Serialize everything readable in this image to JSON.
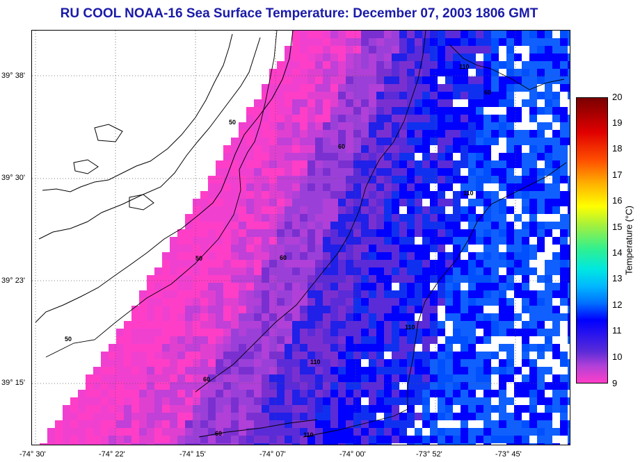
{
  "title": "RU COOL  NOAA-16  Sea Surface Temperature:  December 07, 2003 1806 GMT",
  "map": {
    "y_ticks": [
      "39° 38'",
      "39° 30'",
      "39° 23'",
      "39° 15'"
    ],
    "x_ticks": [
      "-74° 30'",
      "-74° 22'",
      "-74° 15'",
      "-74° 07'",
      "-74° 00'",
      "-73° 52'",
      "-73° 45'"
    ],
    "contour_labels": [
      "50",
      "50",
      "50",
      "60",
      "60",
      "60",
      "60",
      "60",
      "110",
      "110",
      "110",
      "110",
      "110"
    ],
    "colors": {
      "land": "#ffffff",
      "coast_line": "#000000",
      "grid": "#555555"
    }
  },
  "colorbar": {
    "label": "Temperature (°C)",
    "ticks": [
      "20",
      "19",
      "18",
      "17",
      "16",
      "15",
      "14",
      "13",
      "12",
      "11",
      "10",
      "9"
    ],
    "range": [
      9,
      20
    ]
  }
}
